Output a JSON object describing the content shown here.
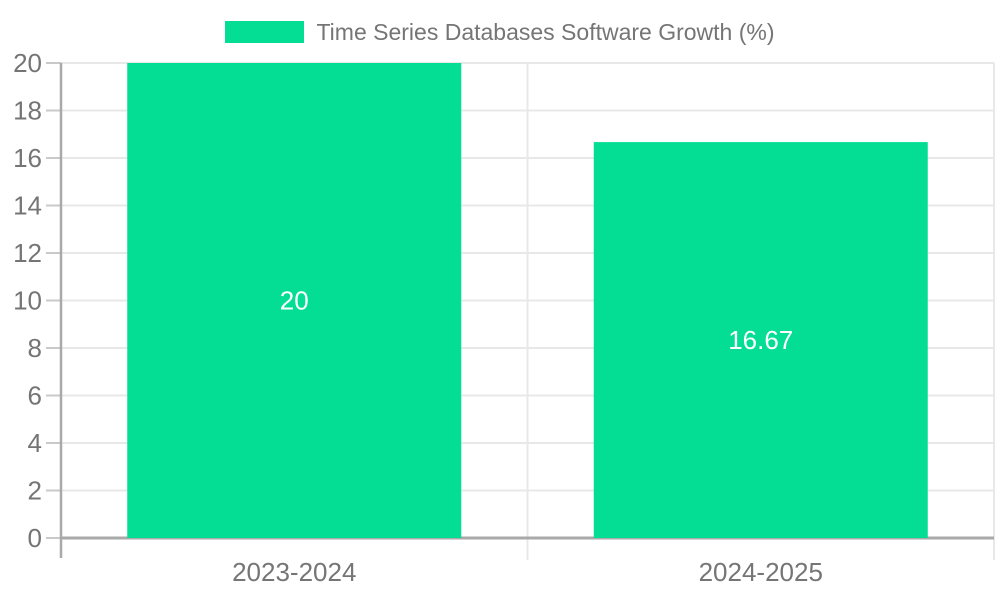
{
  "legend": {
    "label": "Time Series Databases Software Growth (%)"
  },
  "chart_data": {
    "type": "bar",
    "title": "Time Series Databases Software Growth (%)",
    "categories": [
      "2023-2024",
      "2024-2025"
    ],
    "values": [
      20,
      16.67
    ],
    "value_labels": [
      "20",
      "16.67"
    ],
    "xlabel": "",
    "ylabel": "",
    "ylim": [
      0,
      20
    ],
    "ytick_step": 2,
    "yticks": [
      0,
      2,
      4,
      6,
      8,
      10,
      12,
      14,
      16,
      18,
      20
    ],
    "grid": true,
    "legend_position": "top-center",
    "bar_color": "#03DE94",
    "value_label_color": "#ffffff",
    "axis_text_color": "#757575",
    "grid_color": "#e8e8e8",
    "tick_color": "#c9c9c9",
    "axis_line_color": "#a9a9a9",
    "background_color": "#ffffff"
  }
}
